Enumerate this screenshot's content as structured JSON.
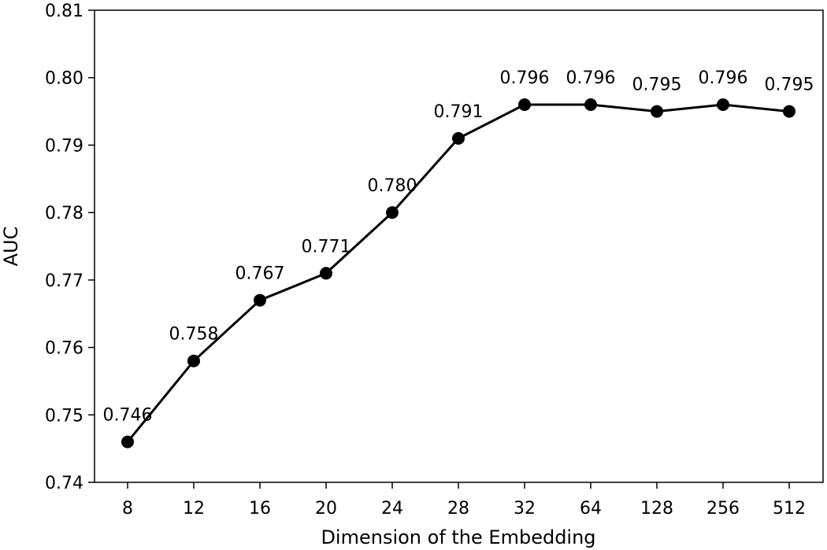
{
  "chart_data": {
    "type": "line",
    "title": "",
    "xlabel": "Dimension of the Embedding",
    "ylabel": "AUC",
    "categories": [
      "8",
      "12",
      "16",
      "20",
      "24",
      "28",
      "32",
      "64",
      "128",
      "256",
      "512"
    ],
    "series": [
      {
        "name": "AUC",
        "values": [
          0.746,
          0.758,
          0.767,
          0.771,
          0.78,
          0.791,
          0.796,
          0.796,
          0.795,
          0.796,
          0.795
        ],
        "labels": [
          "0.746",
          "0.758",
          "0.767",
          "0.771",
          "0.780",
          "0.791",
          "0.796",
          "0.796",
          "0.795",
          "0.796",
          "0.795"
        ],
        "color": "#000000",
        "marker": "circle"
      }
    ],
    "ylim": [
      0.74,
      0.81
    ],
    "yticks": [
      "0.74",
      "0.75",
      "0.76",
      "0.77",
      "0.78",
      "0.79",
      "0.80",
      "0.81"
    ],
    "grid": false,
    "legend": "none"
  }
}
